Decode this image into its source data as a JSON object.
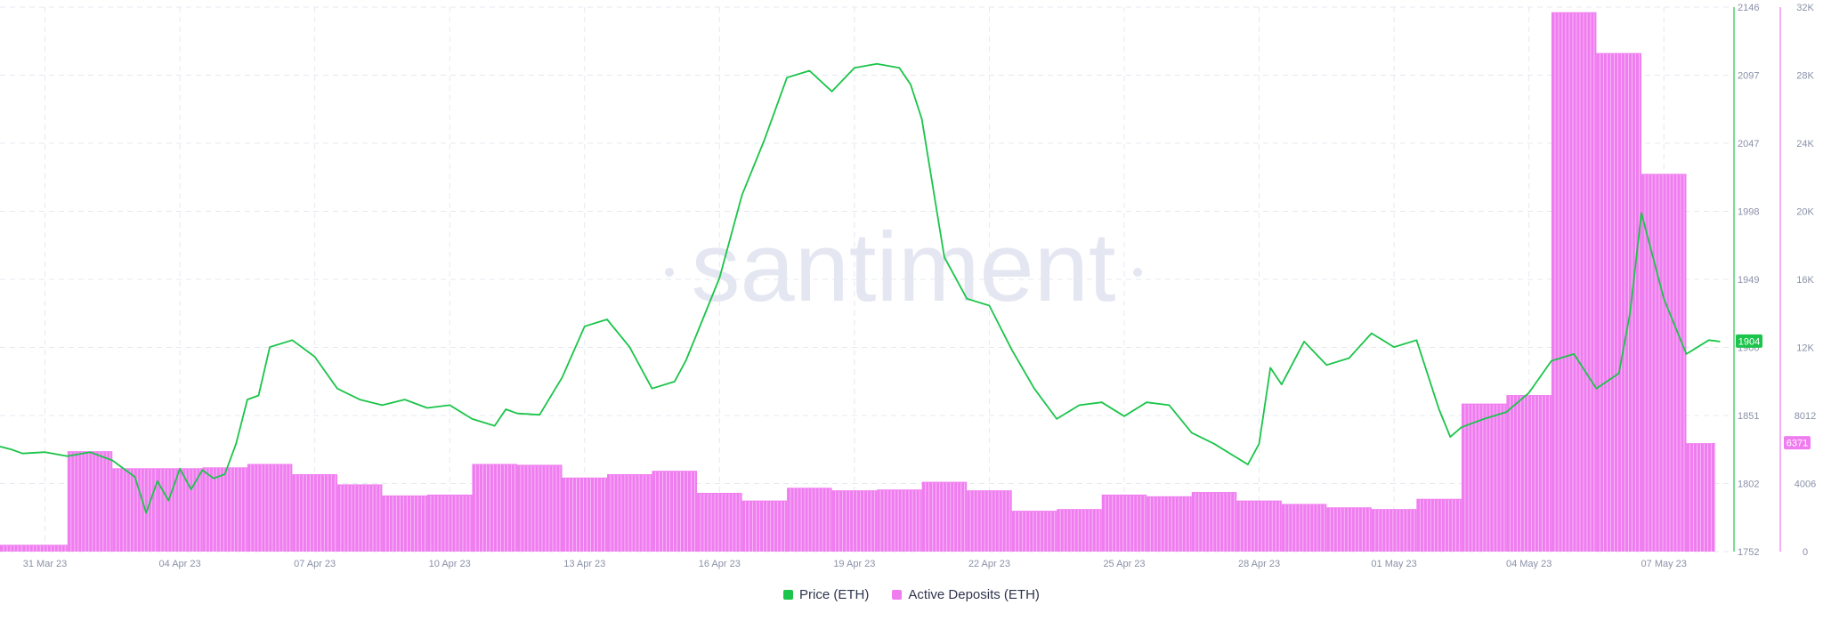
{
  "watermark": "santiment",
  "chart_data": {
    "type": "bar+line",
    "x_start": "2023-03-30",
    "x_end": "2023-05-07",
    "x_ticks": [
      "31 Mar 23",
      "04 Apr 23",
      "07 Apr 23",
      "10 Apr 23",
      "13 Apr 23",
      "16 Apr 23",
      "19 Apr 23",
      "22 Apr 23",
      "25 Apr 23",
      "28 Apr 23",
      "01 May 23",
      "04 May 23",
      "07 May 23"
    ],
    "y_price": {
      "min": 1752,
      "max": 2146,
      "ticks": [
        "1752",
        "1802",
        "1851",
        "1900",
        "1949",
        "1998",
        "2047",
        "2097",
        "2146"
      ]
    },
    "y_deposits": {
      "min": 0,
      "max": 32000,
      "ticks": [
        "0",
        "4006",
        "8012",
        "12K",
        "16K",
        "20K",
        "24K",
        "28K",
        "32K"
      ]
    },
    "last_price_label": "1904",
    "last_deposits_label": "6371",
    "grid": true,
    "legend_position": "bottom-center",
    "series": [
      {
        "name": "Price (ETH)",
        "type": "line",
        "color": "#1bc44a",
        "x": [
          "2023-03-30T00",
          "2023-03-30T06",
          "2023-03-30T12",
          "2023-03-31T00",
          "2023-03-31T12",
          "2023-04-01T00",
          "2023-04-01T12",
          "2023-04-02T00",
          "2023-04-02T06",
          "2023-04-02T12",
          "2023-04-02T18",
          "2023-04-03T00",
          "2023-04-03T06",
          "2023-04-03T12",
          "2023-04-03T18",
          "2023-04-04T00",
          "2023-04-04T06",
          "2023-04-04T12",
          "2023-04-04T18",
          "2023-04-05T00",
          "2023-04-05T12",
          "2023-04-06T00",
          "2023-04-06T12",
          "2023-04-07T00",
          "2023-04-07T12",
          "2023-04-08T00",
          "2023-04-08T12",
          "2023-04-09T00",
          "2023-04-09T12",
          "2023-04-10T00",
          "2023-04-10T06",
          "2023-04-10T12",
          "2023-04-11T00",
          "2023-04-11T12",
          "2023-04-12T00",
          "2023-04-12T12",
          "2023-04-13T00",
          "2023-04-13T12",
          "2023-04-14T00",
          "2023-04-14T06",
          "2023-04-14T12",
          "2023-04-15T00",
          "2023-04-15T12",
          "2023-04-16T00",
          "2023-04-16T12",
          "2023-04-17T00",
          "2023-04-17T12",
          "2023-04-18T00",
          "2023-04-18T12",
          "2023-04-19T00",
          "2023-04-19T06",
          "2023-04-19T12",
          "2023-04-20T00",
          "2023-04-20T12",
          "2023-04-21T00",
          "2023-04-21T12",
          "2023-04-22T00",
          "2023-04-22T12",
          "2023-04-23T00",
          "2023-04-23T12",
          "2023-04-24T00",
          "2023-04-24T12",
          "2023-04-25T00",
          "2023-04-25T12",
          "2023-04-26T00",
          "2023-04-26T12",
          "2023-04-26T18",
          "2023-04-27T00",
          "2023-04-27T06",
          "2023-04-27T12",
          "2023-04-28T00",
          "2023-04-28T12",
          "2023-04-29T00",
          "2023-04-29T12",
          "2023-04-30T00",
          "2023-04-30T12",
          "2023-05-01T00",
          "2023-05-01T06",
          "2023-05-01T12",
          "2023-05-02T00",
          "2023-05-02T12",
          "2023-05-03T00",
          "2023-05-03T12",
          "2023-05-04T00",
          "2023-05-04T12",
          "2023-05-05T00",
          "2023-05-05T06",
          "2023-05-05T12",
          "2023-05-06T00",
          "2023-05-06T12",
          "2023-05-07T00",
          "2023-05-07T06"
        ],
        "values": [
          1828,
          1826,
          1823,
          1824,
          1821,
          1824,
          1818,
          1806,
          1780,
          1803,
          1789,
          1812,
          1797,
          1811,
          1805,
          1808,
          1830,
          1862,
          1865,
          1900,
          1905,
          1893,
          1870,
          1862,
          1858,
          1862,
          1856,
          1858,
          1848,
          1843,
          1855,
          1852,
          1851,
          1878,
          1915,
          1920,
          1900,
          1870,
          1875,
          1890,
          1910,
          1950,
          2010,
          2050,
          2095,
          2100,
          2085,
          2102,
          2105,
          2102,
          2090,
          2065,
          1965,
          1935,
          1930,
          1898,
          1870,
          1848,
          1858,
          1860,
          1850,
          1860,
          1858,
          1838,
          1830,
          1820,
          1815,
          1830,
          1885,
          1873,
          1904,
          1887,
          1892,
          1910,
          1900,
          1905,
          1855,
          1835,
          1842,
          1848,
          1853,
          1867,
          1890,
          1895,
          1870,
          1881,
          1925,
          1997,
          1935,
          1895,
          1905,
          1904
        ],
        "raw_note": ""
      },
      {
        "name": "Active Deposits (ETH)",
        "type": "bar",
        "color": "#f07df0",
        "days": [
          "2023-03-30",
          "2023-03-31",
          "2023-04-01",
          "2023-04-02",
          "2023-04-03",
          "2023-04-04",
          "2023-04-05",
          "2023-04-06",
          "2023-04-07",
          "2023-04-08",
          "2023-04-09",
          "2023-04-10",
          "2023-04-11",
          "2023-04-12",
          "2023-04-13",
          "2023-04-14",
          "2023-04-15",
          "2023-04-16",
          "2023-04-17",
          "2023-04-18",
          "2023-04-19",
          "2023-04-20",
          "2023-04-21",
          "2023-04-22",
          "2023-04-23",
          "2023-04-24",
          "2023-04-25",
          "2023-04-26",
          "2023-04-27",
          "2023-04-28",
          "2023-04-29",
          "2023-04-30",
          "2023-05-01",
          "2023-05-02",
          "2023-05-03",
          "2023-05-04",
          "2023-05-05",
          "2023-05-06",
          "2023-05-07"
        ],
        "values": [
          400,
          400,
          5900,
          4900,
          4900,
          4950,
          5150,
          4550,
          3950,
          3300,
          3350,
          5150,
          5100,
          4350,
          4550,
          4750,
          3450,
          3000,
          3750,
          3600,
          3650,
          4100,
          3600,
          2400,
          2500,
          3350,
          3250,
          3500,
          3000,
          2800,
          2600,
          2500,
          3100,
          8700,
          9200,
          31700,
          29300,
          22200,
          6371
        ]
      }
    ]
  },
  "legend": [
    {
      "label": "Price (ETH)",
      "color": "#1bc44a"
    },
    {
      "label": "Active Deposits (ETH)",
      "color": "#f07df0"
    }
  ]
}
